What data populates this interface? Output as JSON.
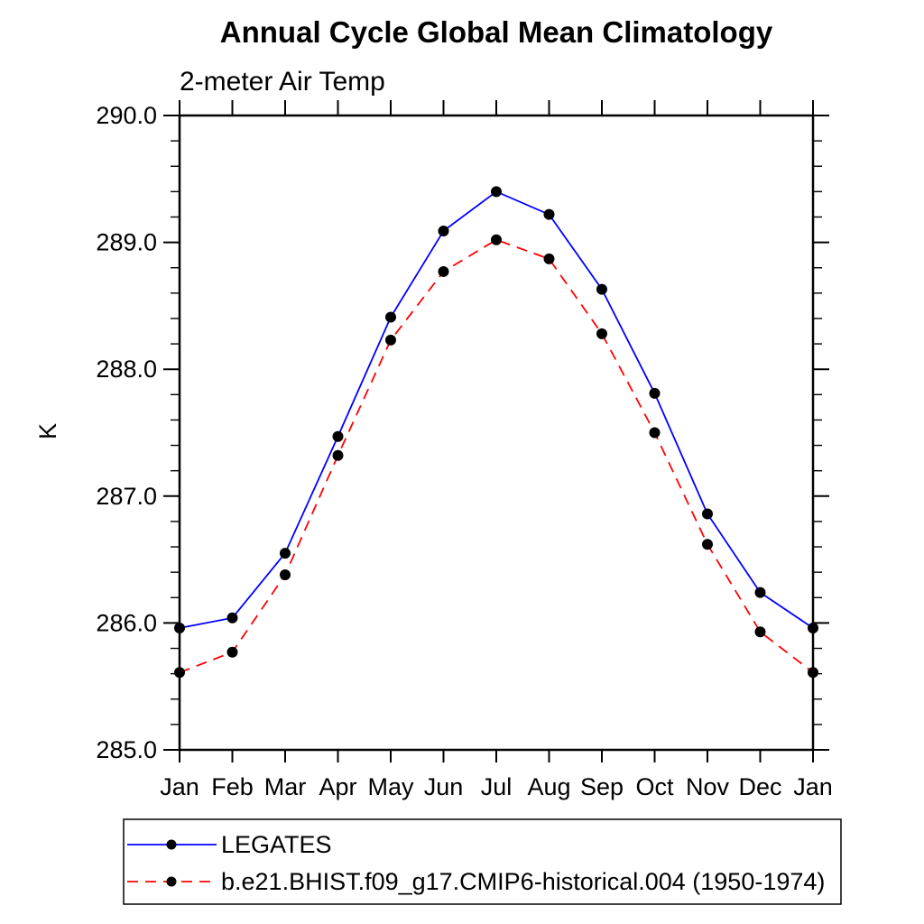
{
  "chart_data": {
    "type": "line",
    "title": "Annual Cycle Global Mean Climatology",
    "subtitle": "2-meter Air Temp",
    "ylabel": "K",
    "xlabel": "",
    "categories": [
      "Jan",
      "Feb",
      "Mar",
      "Apr",
      "May",
      "Jun",
      "Jul",
      "Aug",
      "Sep",
      "Oct",
      "Nov",
      "Dec",
      "Jan"
    ],
    "ylim": [
      285.0,
      290.0
    ],
    "y_major_step": 1.0,
    "y_minor_step": 0.2,
    "y_tick_label_format": "one-decimal",
    "grid": false,
    "frame": "full-box",
    "legend": {
      "position": "below-plot-left",
      "border": true
    },
    "colors": {
      "axis": "#000000",
      "marker": "#000000",
      "series1": "#0000ff",
      "series2": "#ff0000"
    },
    "series": [
      {
        "name": "LEGATES",
        "color": "#0000ff",
        "style": "solid",
        "marker": "filled-circle",
        "marker_color": "#000000",
        "values": [
          285.96,
          286.04,
          286.55,
          287.47,
          288.41,
          289.09,
          289.4,
          289.22,
          288.63,
          287.81,
          286.86,
          286.24,
          285.96
        ]
      },
      {
        "name": "b.e21.BHIST.f09_g17.CMIP6-historical.004 (1950-1974)",
        "color": "#ff0000",
        "style": "dashed",
        "marker": "filled-circle",
        "marker_color": "#000000",
        "values": [
          285.61,
          285.77,
          286.38,
          287.32,
          288.23,
          288.77,
          289.02,
          288.87,
          288.28,
          287.5,
          286.62,
          285.93,
          285.61
        ]
      }
    ]
  }
}
